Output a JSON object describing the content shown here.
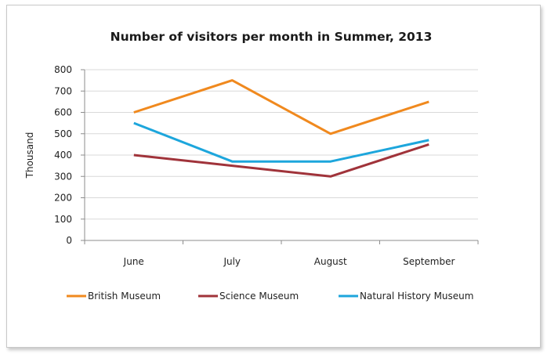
{
  "chart_data": {
    "type": "line",
    "title": "Number of visitors per month in Summer, 2013",
    "ylabel": "Thousand",
    "xlabel": "",
    "categories": [
      "June",
      "July",
      "August",
      "September"
    ],
    "ylim": [
      0,
      800
    ],
    "yticks": [
      0,
      100,
      200,
      300,
      400,
      500,
      600,
      700,
      800
    ],
    "grid": true,
    "legend_position": "bottom",
    "series": [
      {
        "name": "British Museum",
        "color": "#f0891e",
        "values": [
          600,
          750,
          500,
          650
        ]
      },
      {
        "name": "Science Museum",
        "color": "#a0333a",
        "values": [
          400,
          350,
          300,
          450
        ]
      },
      {
        "name": "Natural History Museum",
        "color": "#1da6dc",
        "values": [
          550,
          370,
          370,
          470
        ]
      }
    ]
  }
}
